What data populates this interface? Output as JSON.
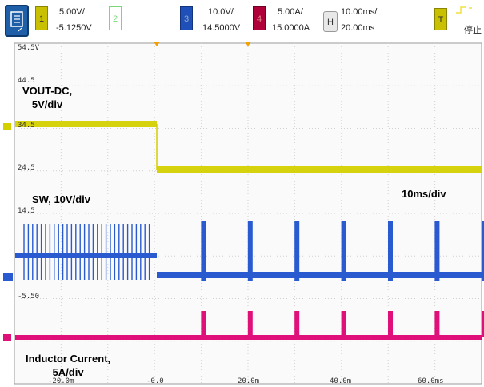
{
  "toolbar": {
    "ch1": {
      "number": "1",
      "scale": "5.00V/",
      "offset": "-5.1250V",
      "color": "#c8c000"
    },
    "ch2": {
      "number": "2"
    },
    "ch3": {
      "number": "3",
      "scale": "10.0V/",
      "offset": "14.5000V",
      "color": "#1f4fb8"
    },
    "ch4": {
      "number": "4",
      "scale": "5.00A/",
      "offset": "15.0000A",
      "color": "#b0003a"
    },
    "horizontal": {
      "button": "H",
      "scale": "10.00ms/",
      "delay": "20.00ms"
    },
    "trigger": {
      "button": "T",
      "status": "停止"
    }
  },
  "labels": {
    "vout": "VOUT-DC,\n5V/div",
    "sw": "SW, 10V/div",
    "timebase": "10ms/div",
    "inductor": "Inductor Current,\n5A/div"
  },
  "y_ticks": {
    "t1": "54.5V",
    "t2": "44.5",
    "t3": "34.5",
    "t4": "24.5",
    "t5": "14.5",
    "t6": "-5.50"
  },
  "x_ticks": [
    "-20.0m",
    "-0.0",
    "20.0m",
    "40.0m",
    "60.0ms"
  ],
  "chart_data": [
    {
      "type": "line",
      "series": [
        {
          "name": "VOUT-DC",
          "color": "#d4d000"
        }
      ],
      "description_values": {
        "before_ms": [
          -40,
          0
        ],
        "level_before_v": 34.5,
        "level_after_v": 24.5
      }
    },
    {
      "type": "line",
      "series": [
        {
          "name": "SW",
          "color": "#2a5ad0"
        }
      ],
      "pre_event_pulses": 30,
      "post_event_bursts": [
        10,
        20,
        30,
        40,
        50,
        60,
        70
      ]
    },
    {
      "type": "line",
      "series": [
        {
          "name": "Inductor Current",
          "color": "#e0107a"
        }
      ],
      "post_event_bursts": [
        10,
        20,
        30,
        40,
        50,
        60,
        70
      ]
    }
  ]
}
